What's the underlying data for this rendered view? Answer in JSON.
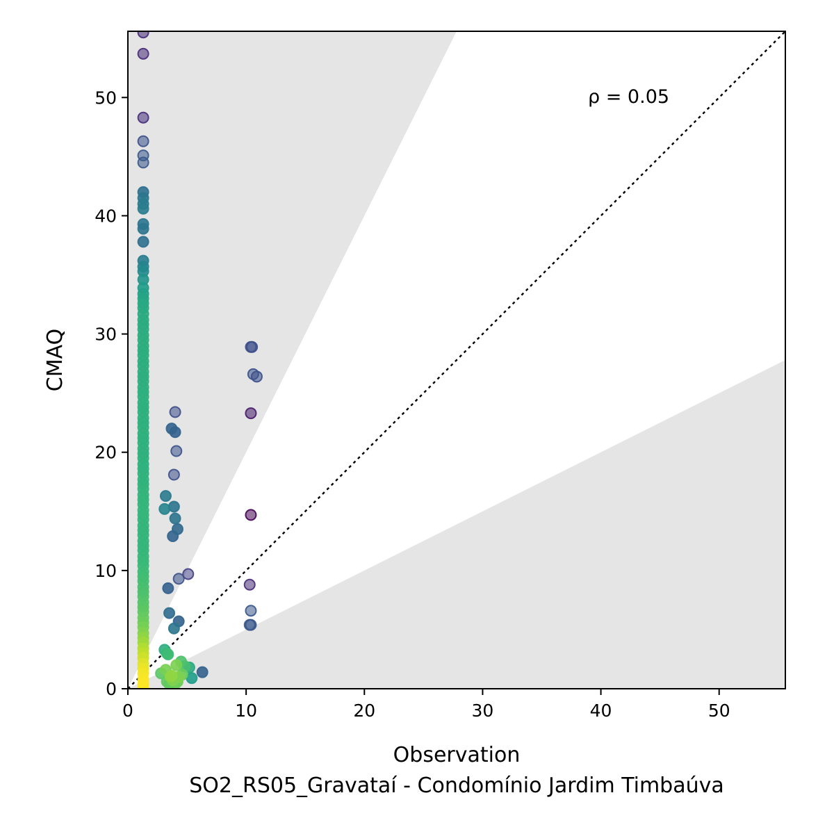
{
  "chart_data": {
    "type": "scatter",
    "title": "",
    "xlabel": "Observation",
    "subtitle": "SO2_RS05_Gravataí - Condomínio Jardim Timbaúva",
    "ylabel": "CMAQ",
    "annotation": "ρ = 0.05",
    "xlim": [
      0,
      55.6
    ],
    "ylim": [
      0,
      55.6
    ],
    "x_ticks": [
      0,
      10,
      20,
      30,
      40,
      50
    ],
    "y_ticks": [
      0,
      10,
      20,
      30,
      40,
      50
    ],
    "grid": false,
    "reference_line": "y = x",
    "shaded_region": "outside factor-of-2 band (y > 2x or y < 0.5x)",
    "colormap": "viridis (point density)",
    "colors": {
      "shade": "#e5e5e5",
      "low_density": "#440154",
      "high_density": "#fde725"
    },
    "points": [
      [
        1.3,
        55.5
      ],
      [
        1.3,
        53.7
      ],
      [
        1.3,
        48.3
      ],
      [
        1.3,
        46.3
      ],
      [
        1.3,
        45.1
      ],
      [
        1.3,
        44.5
      ],
      [
        1.3,
        42.0
      ],
      [
        1.3,
        41.5
      ],
      [
        1.3,
        41.0
      ],
      [
        1.3,
        40.6
      ],
      [
        1.3,
        39.3
      ],
      [
        1.3,
        38.9
      ],
      [
        1.3,
        37.8
      ],
      [
        1.3,
        36.2
      ],
      [
        1.3,
        35.7
      ],
      [
        1.3,
        35.3
      ],
      [
        1.3,
        34.6
      ],
      [
        1.3,
        33.9
      ],
      [
        1.3,
        33.4
      ],
      [
        1.3,
        33.0
      ],
      [
        1.3,
        32.6
      ],
      [
        1.3,
        32.2
      ],
      [
        1.3,
        31.7
      ],
      [
        1.3,
        31.2
      ],
      [
        1.3,
        30.8
      ],
      [
        1.3,
        30.4
      ],
      [
        1.3,
        29.9
      ],
      [
        1.3,
        29.5
      ],
      [
        1.3,
        29.0
      ],
      [
        1.3,
        28.6
      ],
      [
        1.3,
        28.2
      ],
      [
        1.3,
        27.7
      ],
      [
        1.3,
        27.3
      ],
      [
        1.3,
        26.8
      ],
      [
        1.3,
        26.4
      ],
      [
        1.3,
        26.0
      ],
      [
        1.3,
        25.5
      ],
      [
        1.3,
        25.1
      ],
      [
        1.3,
        24.7
      ],
      [
        1.3,
        24.2
      ],
      [
        1.3,
        23.8
      ],
      [
        1.3,
        23.4
      ],
      [
        1.3,
        22.9
      ],
      [
        1.3,
        22.5
      ],
      [
        1.3,
        22.1
      ],
      [
        1.3,
        21.6
      ],
      [
        1.3,
        21.2
      ],
      [
        1.3,
        20.8
      ],
      [
        1.3,
        20.3
      ],
      [
        1.3,
        19.9
      ],
      [
        1.3,
        19.5
      ],
      [
        1.3,
        19.0
      ],
      [
        1.3,
        18.6
      ],
      [
        1.3,
        18.2
      ],
      [
        1.3,
        17.7
      ],
      [
        1.3,
        17.3
      ],
      [
        1.3,
        16.9
      ],
      [
        1.3,
        16.4
      ],
      [
        1.3,
        16.0
      ],
      [
        1.3,
        15.6
      ],
      [
        1.3,
        15.1
      ],
      [
        1.3,
        14.7
      ],
      [
        1.3,
        14.3
      ],
      [
        1.3,
        13.8
      ],
      [
        1.3,
        13.4
      ],
      [
        1.3,
        13.0
      ],
      [
        1.3,
        12.5
      ],
      [
        1.3,
        12.1
      ],
      [
        1.3,
        11.7
      ],
      [
        1.3,
        11.2
      ],
      [
        1.3,
        10.8
      ],
      [
        1.3,
        10.4
      ],
      [
        1.3,
        9.9
      ],
      [
        1.3,
        9.5
      ],
      [
        1.3,
        9.1
      ],
      [
        1.3,
        8.6
      ],
      [
        1.3,
        8.2
      ],
      [
        1.3,
        7.8
      ],
      [
        1.3,
        7.3
      ],
      [
        1.3,
        6.9
      ],
      [
        1.3,
        6.5
      ],
      [
        1.3,
        6.0
      ],
      [
        1.3,
        5.6
      ],
      [
        1.3,
        5.2
      ],
      [
        1.3,
        4.7
      ],
      [
        1.3,
        4.3
      ],
      [
        1.3,
        3.9
      ],
      [
        1.3,
        3.4
      ],
      [
        1.3,
        3.0
      ],
      [
        1.3,
        2.6
      ],
      [
        1.3,
        2.1
      ],
      [
        1.3,
        1.7
      ],
      [
        1.3,
        1.3
      ],
      [
        1.3,
        0.8
      ],
      [
        1.3,
        0.4
      ],
      [
        1.3,
        0.1
      ],
      [
        4.0,
        23.4
      ],
      [
        3.7,
        22.0
      ],
      [
        4.0,
        21.7
      ],
      [
        4.1,
        20.1
      ],
      [
        3.9,
        18.1
      ],
      [
        3.2,
        16.3
      ],
      [
        3.1,
        15.2
      ],
      [
        3.9,
        15.4
      ],
      [
        4.0,
        14.4
      ],
      [
        4.2,
        13.5
      ],
      [
        3.8,
        12.9
      ],
      [
        5.1,
        9.7
      ],
      [
        4.3,
        9.3
      ],
      [
        3.4,
        8.5
      ],
      [
        3.5,
        6.4
      ],
      [
        4.3,
        5.7
      ],
      [
        3.9,
        5.1
      ],
      [
        3.1,
        3.3
      ],
      [
        3.3,
        3.0
      ],
      [
        3.4,
        2.9
      ],
      [
        4.5,
        2.3
      ],
      [
        4.1,
        2.0
      ],
      [
        4.8,
        1.9
      ],
      [
        5.2,
        1.8
      ],
      [
        3.2,
        1.6
      ],
      [
        6.3,
        1.4
      ],
      [
        2.8,
        1.3
      ],
      [
        4.6,
        1.2
      ],
      [
        3.6,
        1.0
      ],
      [
        5.4,
        0.9
      ],
      [
        3.8,
        0.7
      ],
      [
        3.3,
        0.6
      ],
      [
        4.2,
        0.6
      ],
      [
        3.5,
        0.4
      ],
      [
        4.0,
        0.4
      ],
      [
        3.7,
        1.1
      ],
      [
        4.3,
        1.0
      ],
      [
        10.4,
        28.9
      ],
      [
        10.5,
        28.9
      ],
      [
        10.6,
        26.6
      ],
      [
        10.9,
        26.4
      ],
      [
        10.4,
        23.3
      ],
      [
        10.4,
        14.7
      ],
      [
        10.3,
        8.8
      ],
      [
        10.4,
        6.6
      ],
      [
        10.3,
        5.4
      ],
      [
        10.4,
        5.4
      ]
    ]
  }
}
